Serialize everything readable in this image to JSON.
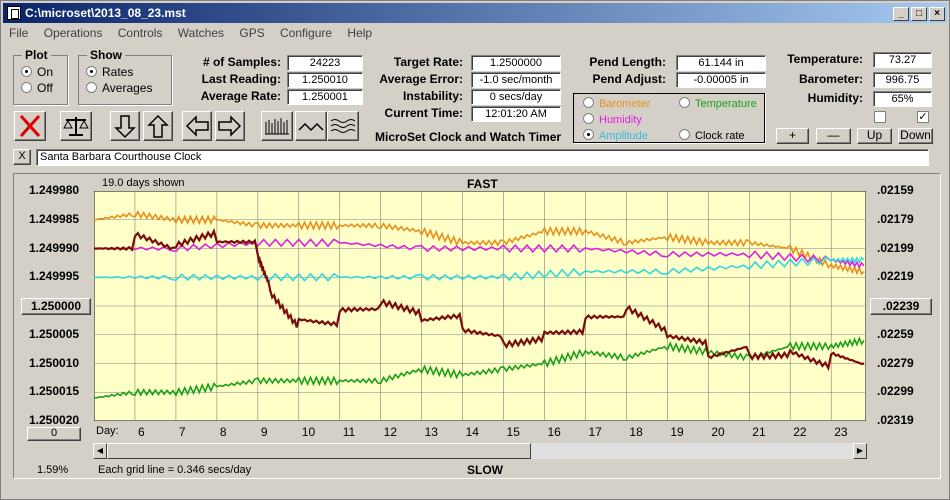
{
  "window": {
    "title": "C:\\microset\\2013_08_23.mst"
  },
  "menu": [
    "File",
    "Operations",
    "Controls",
    "Watches",
    "GPS",
    "Configure",
    "Help"
  ],
  "plot_group": {
    "title": "Plot",
    "on": "On",
    "off": "Off"
  },
  "show_group": {
    "title": "Show",
    "rates": "Rates",
    "averages": "Averages"
  },
  "stats": {
    "samples_label": "# of Samples:",
    "samples": "24223",
    "last_label": "Last Reading:",
    "last": "1.250010",
    "avg_label": "Average Rate:",
    "avg": "1.250001"
  },
  "target": {
    "target_label": "Target Rate:",
    "target": "1.2500000",
    "error_label": "Average Error:",
    "error": "-1.0 sec/month",
    "instab_label": "Instability:",
    "instab": "0 secs/day",
    "time_label": "Current Time:",
    "time": "12:01:20 AM"
  },
  "pend": {
    "len_label": "Pend Length:",
    "len": "61.144 in",
    "adj_label": "Pend Adjust:",
    "adj": "-0.00005 in"
  },
  "env": {
    "temp_label": "Temperature:",
    "temp": "73.27",
    "baro_label": "Barometer:",
    "baro": "996.75",
    "hum_label": "Humidity:",
    "hum": "65%"
  },
  "series_select": {
    "barometer": "Barometer",
    "temperature": "Temperature",
    "humidity": "Humidity",
    "amplitude": "Amplitude",
    "clock_rate": "Clock rate"
  },
  "colors": {
    "barometer": "#e8901c",
    "temperature": "#1aa01a",
    "humidity": "#e020e0",
    "amplitude": "#30d8e0",
    "clock": "#7a0c0c"
  },
  "scale_buttons": {
    "plus": "+",
    "minus": "—",
    "up": "Up",
    "down": "Down"
  },
  "app_title": "MicroSet Clock and Watch Timer",
  "clock_name": "Santa Barbara Courthouse Clock",
  "close_x": "X",
  "chart": {
    "days_shown": "19.0 days shown",
    "fast": "FAST",
    "slow": "SLOW",
    "grid_note": "Each grid line = 0.346 secs/day",
    "percent": "1.59%",
    "day_label": "Day:",
    "left_ticks": [
      "1.249980",
      "1.249985",
      "1.249990",
      "1.249995",
      "1.250000",
      "1.250005",
      "1.250010",
      "1.250015",
      "1.250020"
    ],
    "right_ticks": [
      ".02159",
      ".02179",
      ".02199",
      ".02219",
      ".02239",
      ".02259",
      ".02279",
      ".02299",
      ".02319"
    ],
    "left_center_button": "1.250000",
    "right_center_button": ".02239",
    "zero_button": "0"
  },
  "chart_data": {
    "type": "line",
    "x_label": "Day:",
    "x_ticks": [
      6,
      7,
      8,
      9,
      10,
      11,
      12,
      13,
      14,
      15,
      16,
      17,
      18,
      19,
      20,
      21,
      22,
      23
    ],
    "ylim": [
      1.25002,
      1.24998
    ],
    "series": [
      {
        "name": "Clock rate",
        "x": [
          5,
          6,
          7,
          8,
          9,
          9.3,
          10,
          11,
          12,
          13,
          14,
          15,
          16,
          17,
          18,
          19,
          20,
          21,
          22,
          23,
          23.8
        ],
        "values": [
          1.24999,
          1.249989,
          1.249991,
          1.249989,
          1.24999,
          1.249996,
          1.250002,
          1.250002,
          1.250001,
          1.250003,
          1.250003,
          1.250005,
          1.250004,
          1.250003,
          1.250002,
          1.250006,
          1.250008,
          1.250007,
          1.250007,
          1.250009,
          1.25001
        ]
      },
      {
        "name": "Barometer",
        "x": [
          5,
          6,
          7,
          8,
          9,
          10,
          11,
          12,
          13,
          14,
          15,
          16,
          17,
          18,
          19,
          20,
          21,
          22,
          23,
          23.8
        ],
        "values": [
          1.249985,
          1.249984,
          1.249985,
          1.249985,
          1.249986,
          1.249986,
          1.249986,
          1.249986,
          1.249987,
          1.249989,
          1.249989,
          1.249987,
          1.249987,
          1.249989,
          1.249988,
          1.249989,
          1.249989,
          1.24999,
          1.249993,
          1.249994
        ]
      },
      {
        "name": "Humidity",
        "x": [
          5,
          7,
          9,
          11,
          13,
          15,
          17,
          19,
          21,
          23,
          23.8
        ],
        "values": [
          1.24999,
          1.24999,
          1.249989,
          1.249989,
          1.24999,
          1.24999,
          1.24999,
          1.249991,
          1.249991,
          1.249992,
          1.249993
        ]
      },
      {
        "name": "Amplitude",
        "x": [
          5,
          7,
          9,
          11,
          13,
          15,
          17,
          19,
          21,
          23,
          23.8
        ],
        "values": [
          1.249995,
          1.249995,
          1.249995,
          1.249995,
          1.249995,
          1.249995,
          1.249994,
          1.249994,
          1.249993,
          1.249992,
          1.249992
        ]
      },
      {
        "name": "Temperature",
        "x": [
          5,
          6,
          7,
          8,
          9,
          10,
          11,
          12,
          13,
          14,
          15,
          16,
          17,
          18,
          19,
          20,
          21,
          22,
          23,
          23.8
        ],
        "values": [
          1.250016,
          1.250015,
          1.250015,
          1.250014,
          1.250013,
          1.250013,
          1.250013,
          1.250013,
          1.250011,
          1.250012,
          1.250011,
          1.25001,
          1.250008,
          1.250009,
          1.250007,
          1.250008,
          1.250009,
          1.250007,
          1.250007,
          1.250006
        ]
      }
    ]
  }
}
